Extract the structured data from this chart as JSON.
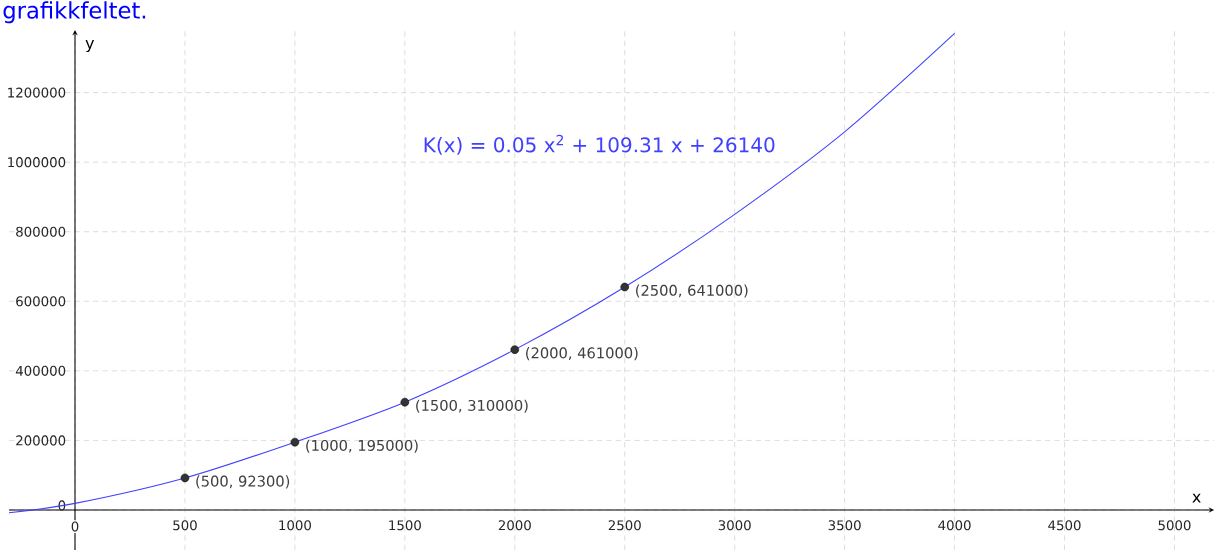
{
  "chart_data": {
    "type": "line",
    "xlabel": "x",
    "ylabel": "y",
    "annotations": [
      "grafikkfeltet."
    ],
    "xlim": [
      -300,
      5180
    ],
    "ylim": [
      -115000,
      1380000
    ],
    "xticks": [
      0,
      500,
      1000,
      1500,
      2000,
      2500,
      3000,
      3500,
      4000,
      4500,
      5000
    ],
    "yticks": [
      0,
      200000,
      400000,
      600000,
      800000,
      1000000,
      1200000
    ],
    "grid": true,
    "series": [
      {
        "name": "K(x) = 0.05 x$^{2}$ + 109.31 x + 26140",
        "color": "#4040ff",
        "marker": "none",
        "x": [
          -300,
          0,
          500,
          1000,
          1500,
          2000,
          2500,
          3000,
          3500,
          4000
        ],
        "values": [
          -8000,
          19000,
          92000,
          195000,
          310000,
          461000,
          641000,
          850000,
          1087000,
          1370000
        ]
      },
      {
        "type": "scatter",
        "color": "#333333",
        "marker": "circle",
        "x": [
          500,
          1000,
          1500,
          2000,
          2500
        ],
        "values": [
          92300,
          195000,
          310000,
          461000,
          641000
        ],
        "value_labels": [
          "(500, 92300)",
          "(1000, 195000)",
          "(1500, 310000)",
          "(2000, 461000)",
          "(2500, 641000)"
        ]
      }
    ]
  }
}
